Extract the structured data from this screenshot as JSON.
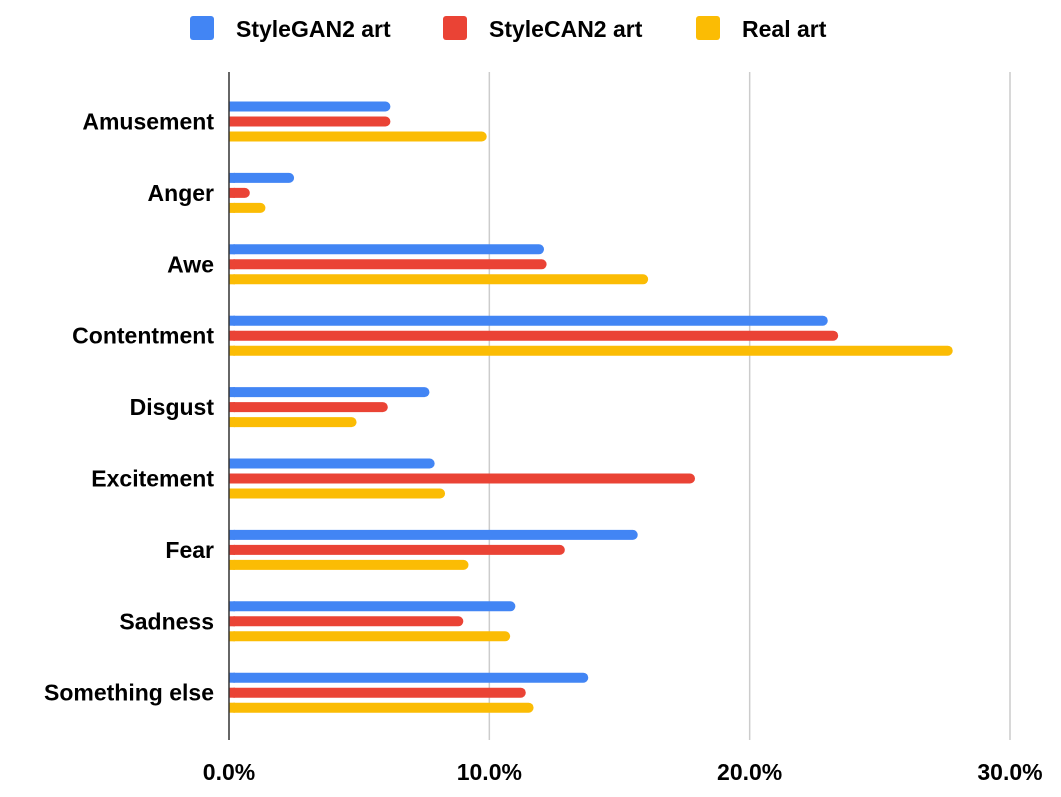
{
  "chart_data": {
    "type": "bar",
    "orientation": "horizontal",
    "categories": [
      "Amusement",
      "Anger",
      "Awe",
      "Contentment",
      "Disgust",
      "Excitement",
      "Fear",
      "Sadness",
      "Something else"
    ],
    "series": [
      {
        "name": "StyleGAN2 art",
        "color": "#4285F4",
        "values": [
          6.2,
          2.5,
          12.1,
          23.0,
          7.7,
          7.9,
          15.7,
          11.0,
          13.8
        ]
      },
      {
        "name": "StyleCAN2 art",
        "color": "#EA4335",
        "values": [
          6.2,
          0.8,
          12.2,
          23.4,
          6.1,
          17.9,
          12.9,
          9.0,
          11.4
        ]
      },
      {
        "name": "Real art",
        "color": "#FBBC04",
        "values": [
          9.9,
          1.4,
          16.1,
          27.8,
          4.9,
          8.3,
          9.2,
          10.8,
          11.7
        ]
      }
    ],
    "xlim": [
      0,
      30
    ],
    "x_ticks": [
      "0.0%",
      "10.0%",
      "20.0%",
      "30.0%"
    ],
    "title": "",
    "xlabel": "",
    "ylabel": "",
    "grid": true,
    "legend_position": "top"
  }
}
